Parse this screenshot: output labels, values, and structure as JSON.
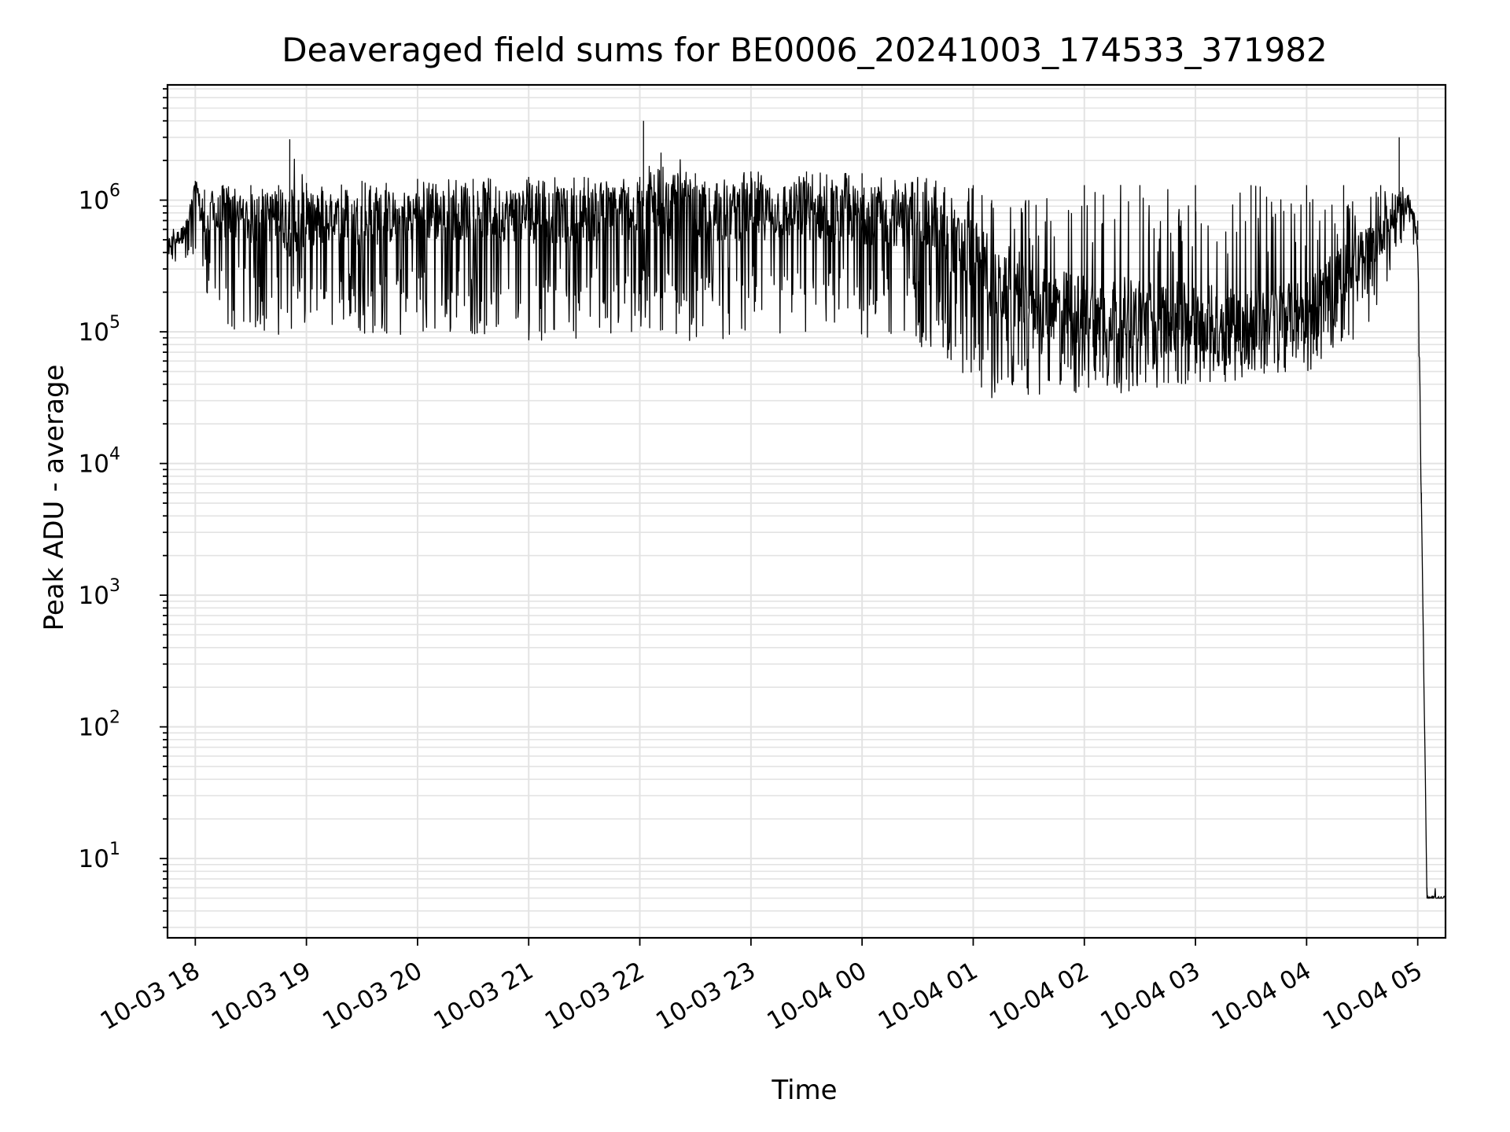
{
  "chart_data": {
    "type": "line",
    "title": "Deaveraged field sums for BE0006_20241003_174533_371982",
    "xlabel": "Time",
    "ylabel": "Peak ADU - average",
    "yscale": "log",
    "ylim": [
      2.5,
      7500000
    ],
    "xlim": [
      "2024-10-03 17:45",
      "2024-10-04 05:15"
    ],
    "grid": true,
    "line_color": "#000000",
    "x_ticks": [
      "10-03 18",
      "10-03 19",
      "10-03 20",
      "10-03 21",
      "10-03 22",
      "10-03 23",
      "10-04 00",
      "10-04 01",
      "10-04 02",
      "10-04 03",
      "10-04 04",
      "10-04 05"
    ],
    "y_ticks": [
      {
        "base": "10",
        "exp": "1"
      },
      {
        "base": "10",
        "exp": "2"
      },
      {
        "base": "10",
        "exp": "3"
      },
      {
        "base": "10",
        "exp": "4"
      },
      {
        "base": "10",
        "exp": "5"
      },
      {
        "base": "10",
        "exp": "6"
      }
    ],
    "series": [
      {
        "x": [
          "2024-10-03 17:45",
          "2024-10-03 17:55",
          "2024-10-03 18:00",
          "2024-10-03 18:05",
          "2024-10-03 18:15",
          "2024-10-03 18:30",
          "2024-10-03 18:45",
          "2024-10-03 18:51",
          "2024-10-03 19:00",
          "2024-10-03 19:30",
          "2024-10-03 20:00",
          "2024-10-03 20:30",
          "2024-10-03 21:00",
          "2024-10-03 21:30",
          "2024-10-03 22:00",
          "2024-10-03 22:02",
          "2024-10-03 22:30",
          "2024-10-03 23:00",
          "2024-10-03 23:30",
          "2024-10-04 00:00",
          "2024-10-04 00:30",
          "2024-10-04 01:00",
          "2024-10-04 01:10",
          "2024-10-04 01:30",
          "2024-10-04 02:00",
          "2024-10-04 02:30",
          "2024-10-04 03:00",
          "2024-10-04 03:30",
          "2024-10-04 04:00",
          "2024-10-04 04:20",
          "2024-10-04 04:40",
          "2024-10-04 04:50",
          "2024-10-04 04:55",
          "2024-10-04 05:00",
          "2024-10-04 05:02",
          "2024-10-04 05:05",
          "2024-10-04 05:15"
        ],
        "y": [
          450000,
          550000,
          1100000,
          600000,
          700000,
          650000,
          700000,
          600000,
          650000,
          650000,
          700000,
          750000,
          700000,
          700000,
          750000,
          900000,
          700000,
          750000,
          750000,
          700000,
          650000,
          350000,
          200000,
          150000,
          130000,
          120000,
          110000,
          110000,
          130000,
          250000,
          500000,
          900000,
          1000000,
          500000,
          5000,
          5,
          5
        ],
        "y_min": [
          330000,
          300000,
          350000,
          200000,
          100000,
          100000,
          95000,
          90000,
          100000,
          95000,
          90000,
          95000,
          85000,
          90000,
          85000,
          90000,
          85000,
          90000,
          85000,
          85000,
          80000,
          35000,
          30000,
          32000,
          33000,
          35000,
          38000,
          45000,
          50000,
          70000,
          150000,
          400000,
          800000,
          200000,
          4000,
          5,
          5
        ],
        "y_max": [
          650000,
          700000,
          1400000,
          1200000,
          1300000,
          1300000,
          1300000,
          2900000,
          1350000,
          1400000,
          1450000,
          1450000,
          1500000,
          1500000,
          1500000,
          4000000,
          1600000,
          1650000,
          1650000,
          1600000,
          1500000,
          1300000,
          1000000,
          1000000,
          1300000,
          1300000,
          1300000,
          1300000,
          1300000,
          1300000,
          1300000,
          3000000,
          1100000,
          700000,
          6000,
          6,
          6
        ]
      }
    ]
  }
}
